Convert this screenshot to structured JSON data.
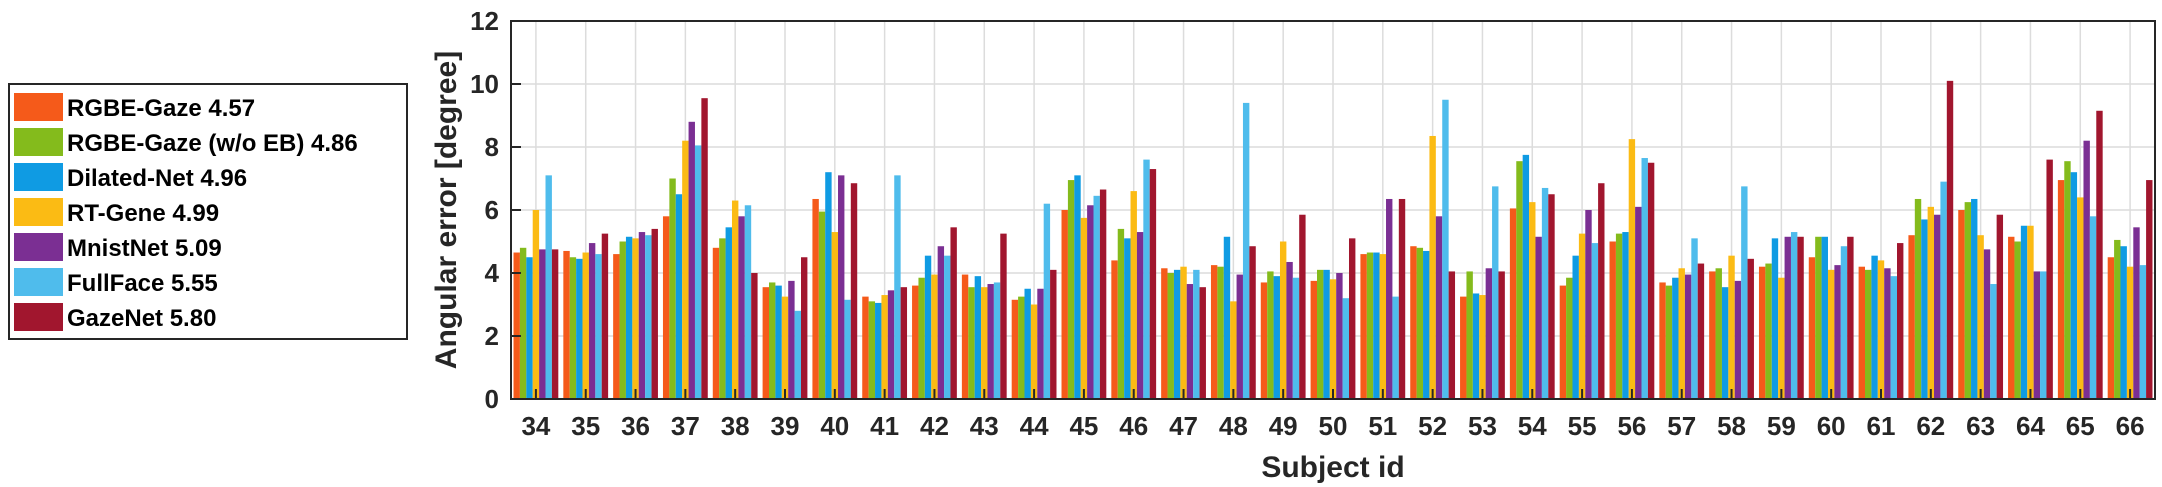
{
  "chart_data": {
    "type": "bar",
    "xlabel": "Subject id",
    "ylabel": "Angular error [degree]",
    "ylim": [
      0,
      12
    ],
    "yticks": [
      0,
      2,
      4,
      6,
      8,
      10,
      12
    ],
    "grid": true,
    "legend_position": "left-outside",
    "categories": [
      "34",
      "35",
      "36",
      "37",
      "38",
      "39",
      "40",
      "41",
      "42",
      "43",
      "44",
      "45",
      "46",
      "47",
      "48",
      "49",
      "50",
      "51",
      "52",
      "53",
      "54",
      "55",
      "56",
      "57",
      "58",
      "59",
      "60",
      "61",
      "62",
      "63",
      "64",
      "65",
      "66"
    ],
    "series": [
      {
        "name": "RGBE-Gaze 4.57",
        "color": "#f55a1a",
        "values": [
          4.65,
          4.7,
          4.6,
          5.8,
          4.8,
          3.55,
          6.35,
          3.25,
          3.6,
          3.95,
          3.15,
          6.0,
          4.4,
          4.15,
          4.25,
          3.7,
          3.75,
          4.6,
          4.85,
          3.25,
          6.05,
          3.6,
          5.0,
          3.7,
          4.05,
          4.2,
          4.5,
          4.2,
          5.2,
          6.0,
          5.15,
          6.95,
          4.5
        ]
      },
      {
        "name": "RGBE-Gaze (w/o EB) 4.86",
        "color": "#84bb1c",
        "values": [
          4.8,
          4.5,
          5.0,
          7.0,
          5.1,
          3.7,
          5.95,
          3.1,
          3.85,
          3.55,
          3.25,
          6.95,
          5.4,
          4.0,
          4.2,
          4.05,
          4.1,
          4.65,
          4.8,
          4.05,
          7.55,
          3.85,
          5.25,
          3.6,
          4.15,
          4.3,
          5.15,
          4.1,
          6.35,
          6.25,
          5.0,
          7.55,
          5.05
        ]
      },
      {
        "name": "Dilated-Net 4.96",
        "color": "#0f9be3",
        "values": [
          4.5,
          4.45,
          5.15,
          6.5,
          5.45,
          3.6,
          7.2,
          3.05,
          4.55,
          3.9,
          3.5,
          7.1,
          5.1,
          4.1,
          5.15,
          3.9,
          4.1,
          4.65,
          4.7,
          3.35,
          7.75,
          4.55,
          5.3,
          3.85,
          3.55,
          5.1,
          5.15,
          4.55,
          5.7,
          6.35,
          5.5,
          7.2,
          4.85
        ]
      },
      {
        "name": "RT-Gene 4.99",
        "color": "#fbbb14",
        "values": [
          6.0,
          4.65,
          5.1,
          8.2,
          6.3,
          3.25,
          5.3,
          3.3,
          3.95,
          3.55,
          3.0,
          5.75,
          6.6,
          4.2,
          3.1,
          5.0,
          3.8,
          4.6,
          8.35,
          3.3,
          6.25,
          5.25,
          8.25,
          4.15,
          4.55,
          3.85,
          4.1,
          4.4,
          6.1,
          5.2,
          5.5,
          6.4,
          4.2
        ]
      },
      {
        "name": "MnistNet 5.09",
        "color": "#7b2f93",
        "values": [
          4.75,
          4.95,
          5.3,
          8.8,
          5.8,
          3.75,
          7.1,
          3.45,
          4.85,
          3.65,
          3.5,
          6.15,
          5.3,
          3.65,
          3.95,
          4.35,
          4.0,
          6.35,
          5.8,
          4.15,
          5.15,
          6.0,
          6.1,
          3.95,
          3.75,
          5.15,
          4.25,
          4.15,
          5.85,
          4.75,
          4.05,
          8.2,
          5.45
        ]
      },
      {
        "name": "FullFace 5.55",
        "color": "#4fbcec",
        "values": [
          7.1,
          4.6,
          5.2,
          8.05,
          6.15,
          2.8,
          3.15,
          7.1,
          4.55,
          3.7,
          6.2,
          6.45,
          7.6,
          4.1,
          9.4,
          3.85,
          3.2,
          3.25,
          9.5,
          6.75,
          6.7,
          4.95,
          7.65,
          5.1,
          6.75,
          5.3,
          4.85,
          3.9,
          6.9,
          3.65,
          4.05,
          5.8,
          4.25
        ]
      },
      {
        "name": "GazeNet 5.80",
        "color": "#a1162e",
        "values": [
          4.75,
          5.25,
          5.4,
          9.55,
          4.0,
          4.5,
          6.85,
          3.55,
          5.45,
          5.25,
          4.1,
          6.65,
          7.3,
          3.55,
          4.85,
          5.85,
          5.1,
          6.35,
          4.05,
          4.05,
          6.5,
          6.85,
          7.5,
          4.3,
          4.45,
          5.15,
          5.15,
          4.95,
          10.1,
          5.85,
          7.6,
          9.15,
          6.95
        ]
      }
    ]
  }
}
